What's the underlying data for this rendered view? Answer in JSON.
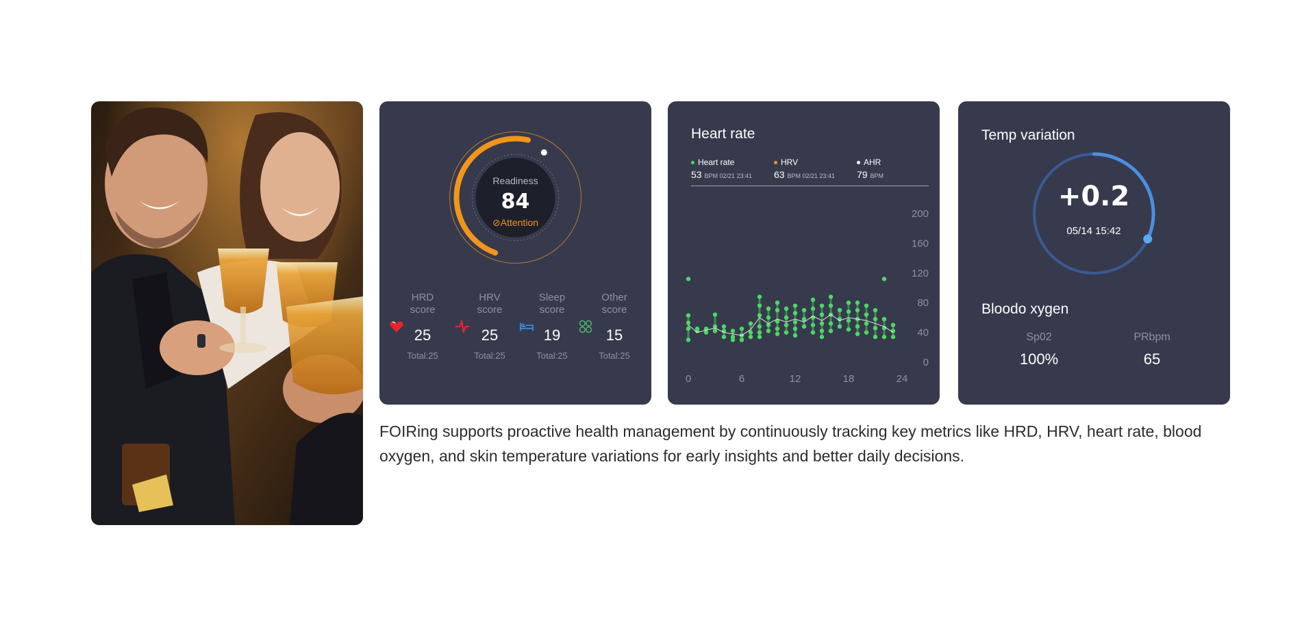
{
  "photo": {
    "subject": "friends toasting with beer glasses"
  },
  "readiness": {
    "label": "Readiness",
    "value": "84",
    "status": "Attention",
    "status_icon": "check-circle-icon",
    "progress": 0.84,
    "accent": "#f2951b",
    "scores": [
      {
        "name_line1": "HRD",
        "name_line2": "score",
        "value": "25",
        "total": "Total:25",
        "icon": "heart-icon",
        "color": "#e8232b"
      },
      {
        "name_line1": "HRV",
        "name_line2": "score",
        "value": "25",
        "total": "Total:25",
        "icon": "pulse-icon",
        "color": "#e8232b"
      },
      {
        "name_line1": "Sleep",
        "name_line2": "score",
        "value": "19",
        "total": "Total:25",
        "icon": "bed-icon",
        "color": "#3d8fe0"
      },
      {
        "name_line1": "Other",
        "name_line2": "score",
        "value": "15",
        "total": "Total:25",
        "icon": "clover-icon",
        "color": "#4cb86b"
      }
    ]
  },
  "heart_rate": {
    "title": "Heart rate",
    "legend": [
      {
        "name": "Heart rate",
        "value": "53",
        "unit": "BPM 02/21 23:41",
        "color": "#4cd964"
      },
      {
        "name": "HRV",
        "value": "63",
        "unit": "BPM 02/21 23:41",
        "color": "#f2951b"
      },
      {
        "name": "AHR",
        "value": "79",
        "unit": "BPM",
        "color": "#ffffff"
      }
    ]
  },
  "chart_data": {
    "type": "scatter",
    "title": "Heart rate",
    "xlabel": "",
    "ylabel": "",
    "xlim": [
      0,
      24
    ],
    "ylim": [
      0,
      200
    ],
    "x_ticks": [
      "0",
      "6",
      "12",
      "18",
      "24"
    ],
    "y_ticks": [
      "200",
      "160",
      "120",
      "80",
      "40",
      "0"
    ],
    "y_axis_position": "right",
    "series": [
      {
        "color": "#4cd964",
        "points": [
          [
            0,
            112
          ],
          [
            0,
            63
          ],
          [
            0,
            53
          ],
          [
            0,
            45
          ],
          [
            0,
            30
          ],
          [
            1,
            45
          ],
          [
            1,
            42
          ],
          [
            2,
            40
          ],
          [
            2,
            45
          ],
          [
            3,
            64
          ],
          [
            3,
            48
          ],
          [
            3,
            42
          ],
          [
            4,
            48
          ],
          [
            4,
            42
          ],
          [
            4,
            34
          ],
          [
            5,
            42
          ],
          [
            5,
            34
          ],
          [
            5,
            30
          ],
          [
            6,
            45
          ],
          [
            6,
            36
          ],
          [
            6,
            30
          ],
          [
            7,
            52
          ],
          [
            7,
            40
          ],
          [
            7,
            34
          ],
          [
            8,
            88
          ],
          [
            8,
            76
          ],
          [
            8,
            63
          ],
          [
            8,
            48
          ],
          [
            8,
            40
          ],
          [
            8,
            34
          ],
          [
            9,
            72
          ],
          [
            9,
            60
          ],
          [
            9,
            50
          ],
          [
            9,
            42
          ],
          [
            10,
            80
          ],
          [
            10,
            70
          ],
          [
            10,
            55
          ],
          [
            10,
            45
          ],
          [
            10,
            38
          ],
          [
            11,
            72
          ],
          [
            11,
            60
          ],
          [
            11,
            50
          ],
          [
            11,
            40
          ],
          [
            12,
            76
          ],
          [
            12,
            66
          ],
          [
            12,
            54
          ],
          [
            12,
            45
          ],
          [
            12,
            36
          ],
          [
            13,
            70
          ],
          [
            13,
            58
          ],
          [
            13,
            48
          ],
          [
            14,
            84
          ],
          [
            14,
            72
          ],
          [
            14,
            60
          ],
          [
            14,
            50
          ],
          [
            14,
            40
          ],
          [
            15,
            76
          ],
          [
            15,
            64
          ],
          [
            15,
            52
          ],
          [
            15,
            42
          ],
          [
            15,
            34
          ],
          [
            16,
            88
          ],
          [
            16,
            76
          ],
          [
            16,
            64
          ],
          [
            16,
            52
          ],
          [
            16,
            42
          ],
          [
            17,
            70
          ],
          [
            17,
            58
          ],
          [
            17,
            48
          ],
          [
            18,
            80
          ],
          [
            18,
            68
          ],
          [
            18,
            56
          ],
          [
            18,
            44
          ],
          [
            19,
            80
          ],
          [
            19,
            70
          ],
          [
            19,
            58
          ],
          [
            19,
            48
          ],
          [
            19,
            38
          ],
          [
            20,
            76
          ],
          [
            20,
            64
          ],
          [
            20,
            52
          ],
          [
            20,
            40
          ],
          [
            21,
            70
          ],
          [
            21,
            58
          ],
          [
            21,
            46
          ],
          [
            21,
            34
          ],
          [
            22,
            112
          ],
          [
            22,
            58
          ],
          [
            22,
            46
          ],
          [
            22,
            34
          ],
          [
            23,
            50
          ],
          [
            23,
            42
          ],
          [
            23,
            34
          ]
        ]
      },
      {
        "color": "#ffffff",
        "line": true,
        "points": [
          [
            0,
            50
          ],
          [
            1,
            40
          ],
          [
            2,
            43
          ],
          [
            3,
            46
          ],
          [
            4,
            40
          ],
          [
            5,
            38
          ],
          [
            6,
            36
          ],
          [
            7,
            44
          ],
          [
            8,
            60
          ],
          [
            9,
            52
          ],
          [
            10,
            58
          ],
          [
            11,
            54
          ],
          [
            12,
            58
          ],
          [
            13,
            54
          ],
          [
            14,
            62
          ],
          [
            15,
            56
          ],
          [
            16,
            64
          ],
          [
            17,
            56
          ],
          [
            18,
            60
          ],
          [
            19,
            58
          ],
          [
            20,
            56
          ],
          [
            21,
            52
          ],
          [
            22,
            48
          ],
          [
            23,
            40
          ]
        ]
      }
    ]
  },
  "temp": {
    "title": "Temp variation",
    "value": "+0.2",
    "time": "05/14 15:42",
    "progress": 0.32,
    "accent": "#4a90e2"
  },
  "oxygen": {
    "title": "Bloodo xygen",
    "items": [
      {
        "label": "Sp02",
        "value": "100%"
      },
      {
        "label": "PRbpm",
        "value": "65"
      }
    ]
  },
  "description": "FOIRing supports proactive health management by continuously tracking key metrics like HRD, HRV, heart rate, blood oxygen, and skin temperature variations for early insights and better daily decisions."
}
